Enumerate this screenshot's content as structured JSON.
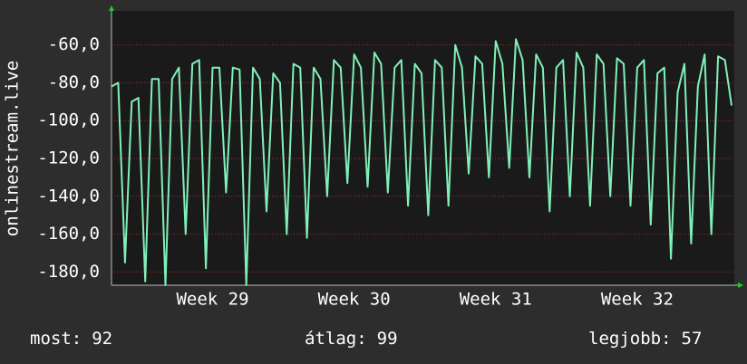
{
  "chart_data": {
    "type": "line",
    "y_label": "onlinestream.live",
    "categories": [
      null,
      null,
      null,
      null,
      null,
      null,
      null,
      null,
      null,
      null,
      null,
      null,
      null,
      null,
      null,
      "Week 29",
      null,
      null,
      null,
      null,
      null,
      null,
      null,
      null,
      null,
      null,
      null,
      null,
      null,
      null,
      null,
      null,
      null,
      null,
      null,
      null,
      "Week 30",
      null,
      null,
      null,
      null,
      null,
      null,
      null,
      null,
      null,
      null,
      null,
      null,
      null,
      null,
      null,
      null,
      null,
      null,
      null,
      null,
      "Week 31",
      null,
      null,
      null,
      null,
      null,
      null,
      null,
      null,
      null,
      null,
      null,
      null,
      null,
      null,
      null,
      null,
      null,
      null,
      null,
      null,
      "Week 32",
      null,
      null,
      null,
      null,
      null,
      null,
      null,
      null,
      null,
      null,
      null,
      null,
      null,
      null
    ],
    "series": [
      {
        "name": "onlinestream.live",
        "color": "#80f0b8",
        "values": [
          -82,
          -80,
          -175,
          -90,
          -88,
          -185,
          -78,
          -78,
          -187,
          -78,
          -72,
          -160,
          -70,
          -68,
          -178,
          -72,
          -72,
          -138,
          -72,
          -73,
          -187,
          -72,
          -78,
          -148,
          -75,
          -80,
          -160,
          -70,
          -72,
          -162,
          -72,
          -78,
          -140,
          -68,
          -72,
          -133,
          -65,
          -72,
          -135,
          -64,
          -70,
          -138,
          -72,
          -68,
          -145,
          -70,
          -75,
          -150,
          -68,
          -72,
          -145,
          -60,
          -72,
          -128,
          -66,
          -70,
          -130,
          -58,
          -70,
          -125,
          -57,
          -68,
          -130,
          -65,
          -72,
          -148,
          -72,
          -68,
          -140,
          -64,
          -72,
          -145,
          -65,
          -70,
          -140,
          -67,
          -70,
          -145,
          -72,
          -68,
          -155,
          -75,
          -72,
          -173,
          -85,
          -70,
          -165,
          -82,
          -65,
          -160,
          -66,
          -68,
          -92
        ]
      }
    ],
    "ylim": [
      -187,
      -42
    ],
    "yticks": [
      {
        "value": -60,
        "label": "-60,0"
      },
      {
        "value": -80,
        "label": "-80,0"
      },
      {
        "value": -100,
        "label": "-100,0"
      },
      {
        "value": -120,
        "label": "-120,0"
      },
      {
        "value": -140,
        "label": "-140,0"
      },
      {
        "value": -160,
        "label": "-160,0"
      },
      {
        "value": -180,
        "label": "-180,0"
      }
    ],
    "grid": true,
    "stats": [
      {
        "label": "most:",
        "value": 92
      },
      {
        "label": "átlag:",
        "value": 99
      },
      {
        "label": "legjobb:",
        "value": 57
      }
    ]
  }
}
